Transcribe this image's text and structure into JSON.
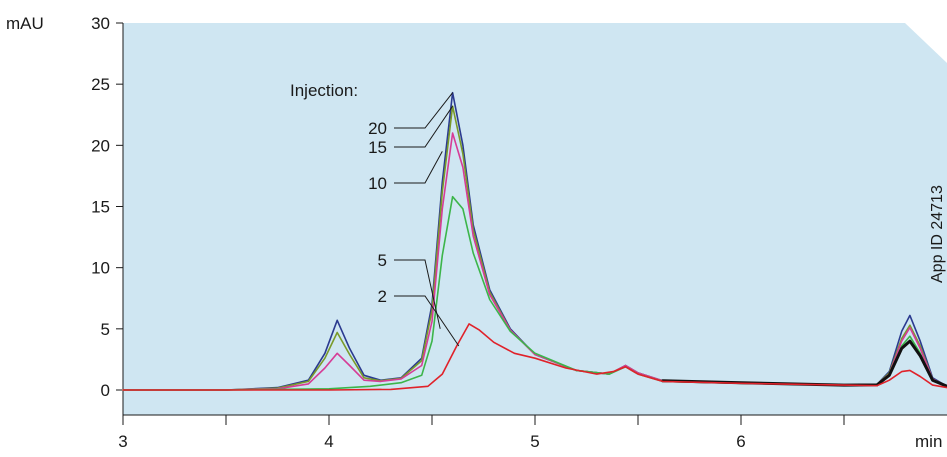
{
  "chart_data": {
    "type": "line",
    "ylabel": "mAU",
    "xlabel": "min",
    "xlim": [
      3,
      7
    ],
    "ylim": [
      0,
      30
    ],
    "x_ticks": [
      3,
      4,
      5,
      6
    ],
    "x_tick_labels": [
      "3",
      "4",
      "5",
      "6"
    ],
    "x_minor_ticks": [
      3.5,
      4.5,
      5.5,
      6.5
    ],
    "y_ticks": [
      0,
      5,
      10,
      15,
      20,
      25,
      30
    ],
    "y_tick_labels": [
      "0",
      "5",
      "10",
      "15",
      "20",
      "25",
      "30"
    ],
    "legend_title": "Injection:",
    "watermark": "App ID 24713",
    "plot_background": "#cfe6f2",
    "series": [
      {
        "name": "20",
        "color": "#2b3a8f",
        "label_anchor": [
          4.6,
          24.3
        ],
        "points": [
          [
            3,
            0
          ],
          [
            3.5,
            0
          ],
          [
            3.75,
            0.2
          ],
          [
            3.9,
            0.8
          ],
          [
            3.98,
            3.0
          ],
          [
            4.04,
            5.7
          ],
          [
            4.1,
            3.4
          ],
          [
            4.17,
            1.2
          ],
          [
            4.25,
            0.8
          ],
          [
            4.35,
            1.0
          ],
          [
            4.45,
            2.6
          ],
          [
            4.5,
            7.0
          ],
          [
            4.55,
            17.0
          ],
          [
            4.6,
            24.3
          ],
          [
            4.65,
            20.0
          ],
          [
            4.7,
            13.5
          ],
          [
            4.78,
            8.2
          ],
          [
            4.88,
            5.0
          ],
          [
            5.0,
            2.9
          ],
          [
            5.2,
            1.6
          ],
          [
            5.36,
            1.3
          ],
          [
            5.44,
            2.0
          ],
          [
            5.5,
            1.4
          ],
          [
            5.62,
            0.75
          ],
          [
            6.0,
            0.6
          ],
          [
            6.5,
            0.4
          ],
          [
            6.66,
            0.45
          ],
          [
            6.72,
            1.5
          ],
          [
            6.78,
            4.8
          ],
          [
            6.82,
            6.1
          ],
          [
            6.87,
            4.0
          ],
          [
            6.93,
            1.0
          ],
          [
            7.0,
            0.3
          ]
        ]
      },
      {
        "name": "15",
        "color": "#7a9a2a",
        "label_anchor": [
          4.6,
          23.2
        ],
        "points": [
          [
            3,
            0
          ],
          [
            3.5,
            0
          ],
          [
            3.75,
            0.15
          ],
          [
            3.9,
            0.7
          ],
          [
            3.98,
            2.6
          ],
          [
            4.04,
            4.7
          ],
          [
            4.1,
            2.9
          ],
          [
            4.17,
            1.0
          ],
          [
            4.25,
            0.75
          ],
          [
            4.35,
            0.95
          ],
          [
            4.45,
            2.4
          ],
          [
            4.5,
            6.5
          ],
          [
            4.55,
            16.2
          ],
          [
            4.6,
            23.2
          ],
          [
            4.65,
            19.3
          ],
          [
            4.7,
            13.1
          ],
          [
            4.78,
            8.0
          ],
          [
            4.88,
            4.9
          ],
          [
            5.0,
            2.9
          ],
          [
            5.2,
            1.6
          ],
          [
            5.36,
            1.3
          ],
          [
            5.44,
            2.0
          ],
          [
            5.5,
            1.4
          ],
          [
            5.62,
            0.75
          ],
          [
            6.0,
            0.6
          ],
          [
            6.5,
            0.4
          ],
          [
            6.66,
            0.45
          ],
          [
            6.72,
            1.4
          ],
          [
            6.78,
            4.2
          ],
          [
            6.82,
            5.3
          ],
          [
            6.87,
            3.6
          ],
          [
            6.93,
            0.9
          ],
          [
            7.0,
            0.3
          ]
        ]
      },
      {
        "name": "10",
        "color": "#d63c96",
        "label_anchor": [
          4.55,
          19.5
        ],
        "points": [
          [
            3,
            0
          ],
          [
            3.5,
            0
          ],
          [
            3.75,
            0.1
          ],
          [
            3.9,
            0.5
          ],
          [
            3.98,
            1.8
          ],
          [
            4.04,
            3.0
          ],
          [
            4.1,
            2.0
          ],
          [
            4.17,
            0.8
          ],
          [
            4.25,
            0.7
          ],
          [
            4.35,
            0.9
          ],
          [
            4.45,
            2.0
          ],
          [
            4.5,
            5.6
          ],
          [
            4.55,
            14.8
          ],
          [
            4.6,
            21.0
          ],
          [
            4.65,
            18.2
          ],
          [
            4.7,
            12.6
          ],
          [
            4.78,
            7.8
          ],
          [
            4.88,
            4.9
          ],
          [
            5.0,
            2.9
          ],
          [
            5.2,
            1.6
          ],
          [
            5.36,
            1.3
          ],
          [
            5.44,
            2.0
          ],
          [
            5.5,
            1.4
          ],
          [
            5.62,
            0.75
          ],
          [
            6.0,
            0.6
          ],
          [
            6.5,
            0.4
          ],
          [
            6.66,
            0.45
          ],
          [
            6.72,
            1.3
          ],
          [
            6.78,
            4.0
          ],
          [
            6.82,
            5.1
          ],
          [
            6.87,
            3.4
          ],
          [
            6.93,
            0.9
          ],
          [
            7.0,
            0.3
          ]
        ]
      },
      {
        "name": "5",
        "color": "#3cb54a",
        "label_anchor": [
          4.54,
          5.0
        ],
        "points": [
          [
            3,
            0
          ],
          [
            3.5,
            0
          ],
          [
            4.0,
            0.1
          ],
          [
            4.2,
            0.3
          ],
          [
            4.35,
            0.6
          ],
          [
            4.45,
            1.2
          ],
          [
            4.5,
            4.0
          ],
          [
            4.55,
            11.0
          ],
          [
            4.6,
            15.8
          ],
          [
            4.65,
            14.8
          ],
          [
            4.7,
            11.2
          ],
          [
            4.78,
            7.4
          ],
          [
            4.88,
            4.8
          ],
          [
            5.0,
            3.0
          ],
          [
            5.2,
            1.6
          ],
          [
            5.36,
            1.3
          ],
          [
            5.44,
            1.9
          ],
          [
            5.5,
            1.3
          ],
          [
            5.62,
            0.7
          ],
          [
            6.0,
            0.55
          ],
          [
            6.5,
            0.4
          ],
          [
            6.66,
            0.4
          ],
          [
            6.72,
            1.2
          ],
          [
            6.78,
            3.6
          ],
          [
            6.82,
            4.4
          ],
          [
            6.87,
            3.0
          ],
          [
            6.93,
            0.8
          ],
          [
            7.0,
            0.3
          ]
        ]
      },
      {
        "name": "",
        "color": "#111111",
        "label_anchor": null,
        "points": [
          [
            5.62,
            0.75
          ],
          [
            6.0,
            0.6
          ],
          [
            6.5,
            0.4
          ],
          [
            6.66,
            0.42
          ],
          [
            6.72,
            1.2
          ],
          [
            6.78,
            3.4
          ],
          [
            6.82,
            4.0
          ],
          [
            6.87,
            2.8
          ],
          [
            6.93,
            0.8
          ],
          [
            7.0,
            0.3
          ]
        ]
      },
      {
        "name": "2",
        "color": "#e0222a",
        "label_anchor": [
          4.63,
          3.6
        ],
        "points": [
          [
            3,
            0
          ],
          [
            4.0,
            0
          ],
          [
            4.3,
            0.05
          ],
          [
            4.48,
            0.3
          ],
          [
            4.55,
            1.3
          ],
          [
            4.62,
            3.6
          ],
          [
            4.68,
            5.4
          ],
          [
            4.73,
            4.9
          ],
          [
            4.8,
            3.9
          ],
          [
            4.9,
            3.0
          ],
          [
            5.0,
            2.6
          ],
          [
            5.15,
            1.8
          ],
          [
            5.3,
            1.3
          ],
          [
            5.38,
            1.5
          ],
          [
            5.44,
            1.9
          ],
          [
            5.5,
            1.3
          ],
          [
            5.62,
            0.7
          ],
          [
            6.0,
            0.55
          ],
          [
            6.5,
            0.4
          ],
          [
            6.66,
            0.35
          ],
          [
            6.72,
            0.8
          ],
          [
            6.78,
            1.5
          ],
          [
            6.82,
            1.6
          ],
          [
            6.87,
            1.1
          ],
          [
            6.93,
            0.4
          ],
          [
            7.0,
            0.2
          ]
        ]
      }
    ]
  }
}
